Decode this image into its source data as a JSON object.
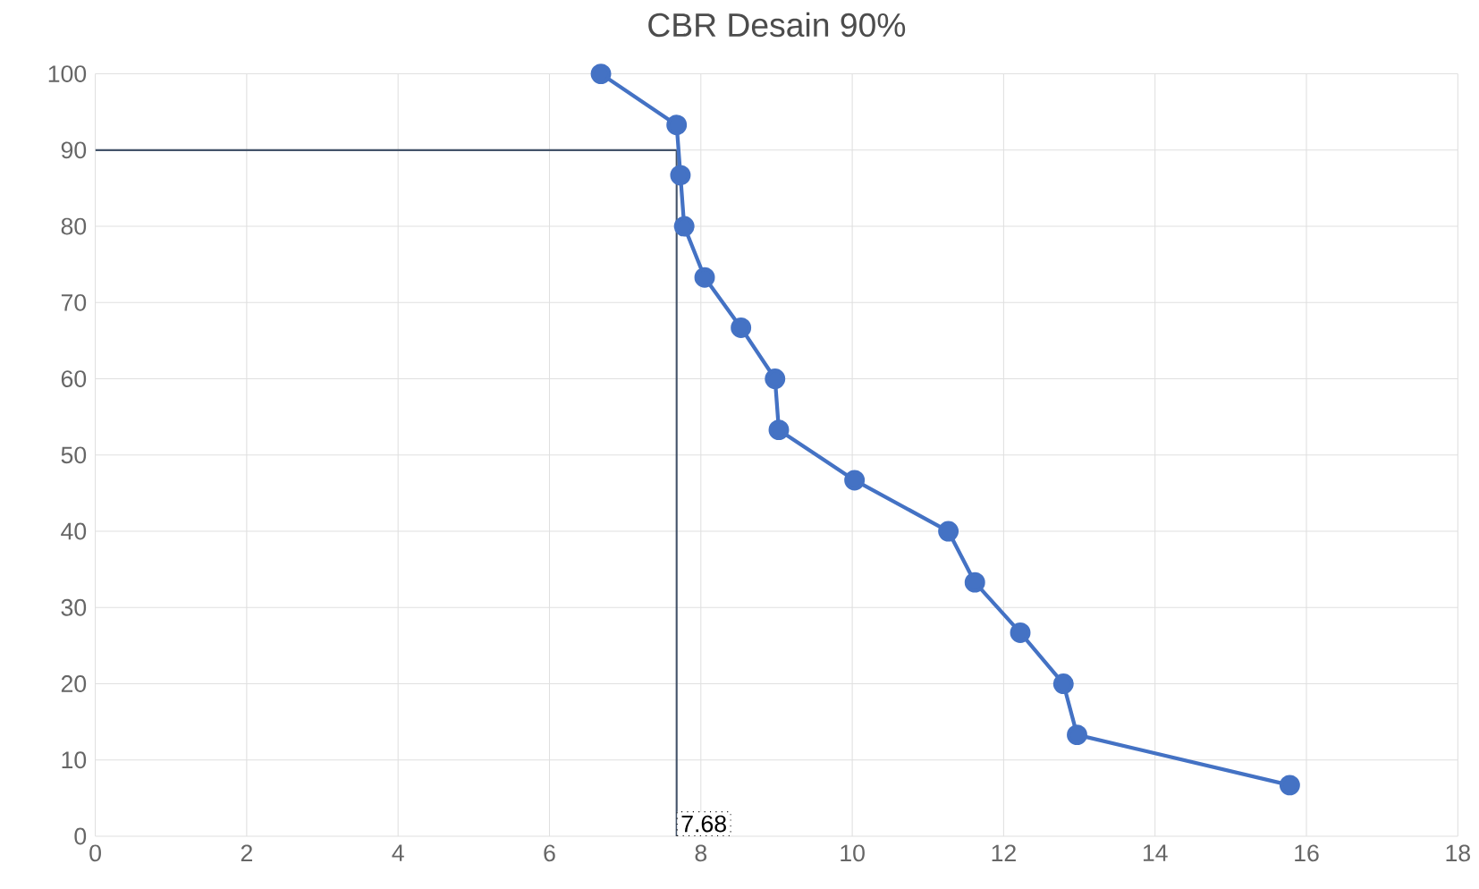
{
  "chart_data": {
    "type": "line",
    "title": "CBR Desain 90%",
    "x": [
      6.68,
      7.68,
      7.73,
      7.78,
      8.05,
      8.53,
      8.98,
      9.03,
      10.03,
      11.27,
      11.62,
      12.22,
      12.79,
      12.97,
      15.78
    ],
    "series": [
      {
        "color": "#4472c4",
        "values": [
          100,
          93.3,
          86.7,
          80,
          73.3,
          66.7,
          60,
          53.3,
          46.7,
          40,
          33.3,
          26.7,
          20,
          13.3,
          6.7
        ]
      }
    ],
    "xlim": [
      0,
      18
    ],
    "xticks": [
      0,
      2,
      4,
      6,
      8,
      10,
      12,
      14,
      16,
      18
    ],
    "ylim": [
      0,
      100
    ],
    "yticks": [
      0,
      10,
      20,
      30,
      40,
      50,
      60,
      70,
      80,
      90,
      100
    ],
    "ref_lines": [
      {
        "axis": "y",
        "value": 90,
        "color": "#44546a"
      },
      {
        "axis": "x",
        "value": 7.68,
        "label": "7.68",
        "color": "#44546a"
      }
    ],
    "grid": true,
    "marker": "circle",
    "line_style": "solid"
  }
}
